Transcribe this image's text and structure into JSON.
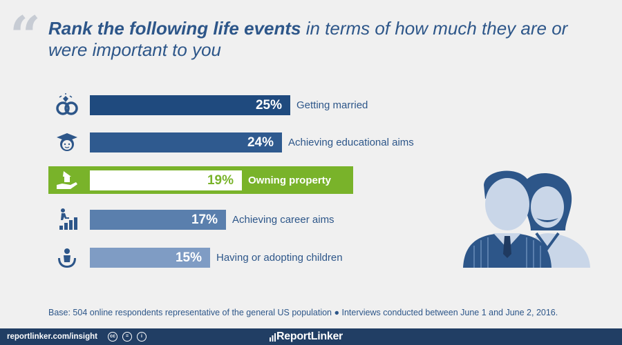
{
  "title": {
    "bold_part": "Rank the following life events",
    "rest_part": " in terms of how much they are or were important to you"
  },
  "chart_data": {
    "type": "bar",
    "categories": [
      "Getting married",
      "Achieving educational aims",
      "Owning property",
      "Achieving career aims",
      "Having or adopting children"
    ],
    "values": [
      25,
      24,
      19,
      17,
      15
    ],
    "value_labels": [
      "25%",
      "24%",
      "19%",
      "17%",
      "15%"
    ],
    "icons": [
      "rings-icon",
      "graduate-icon",
      "house-in-hand-icon",
      "career-ladder-icon",
      "family-icon"
    ],
    "highlighted_category": "Owning property",
    "xlabel": "",
    "ylabel": "",
    "grid": false,
    "bar_colors": [
      "#1f4a7e",
      "#2f5a8f",
      "#ffffff",
      "#5a7fad",
      "#7f9cc4"
    ],
    "highlight_color": "#79b32a"
  },
  "base_note": "Base: 504 online respondents representative of the general US population  ●  Interviews conducted between June 1 and June 2, 2016.",
  "footer": {
    "site": "reportlinker.com/insight",
    "cc_icons": [
      "cc",
      "=",
      "i"
    ],
    "brand": "ReportLinker"
  },
  "colors": {
    "title": "#2d5689",
    "footer_bg": "#213e64",
    "panel_bg": "#f0f0f0"
  }
}
